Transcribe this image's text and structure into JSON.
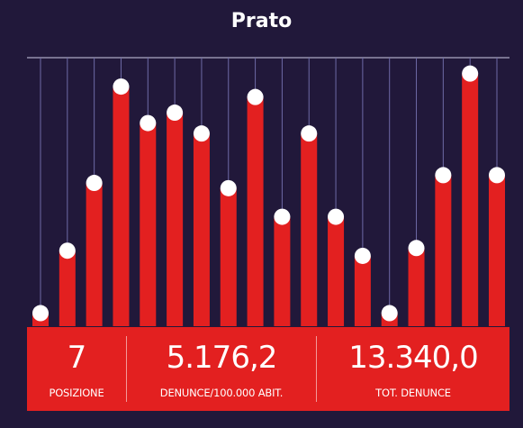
{
  "title": "Prato",
  "colors": {
    "background": "#21183a",
    "bar": "#e32020",
    "marker": "#ffffff",
    "gridline": "#6e6aa6"
  },
  "chart_data": {
    "type": "bar",
    "title": "Prato",
    "values": [
      5,
      29,
      55,
      92,
      78,
      82,
      74,
      53,
      88,
      42,
      74,
      42,
      27,
      5,
      30,
      58,
      97,
      58
    ],
    "ylim": [
      0,
      100
    ],
    "grid": "vertical lines",
    "marker": "white dot at top of each bar"
  },
  "stats": [
    {
      "value": "7",
      "label": "POSIZIONE"
    },
    {
      "value": "5.176,2",
      "label": "DENUNCE/100.000 ABIT."
    },
    {
      "value": "13.340,0",
      "label": "TOT. DENUNCE"
    }
  ]
}
